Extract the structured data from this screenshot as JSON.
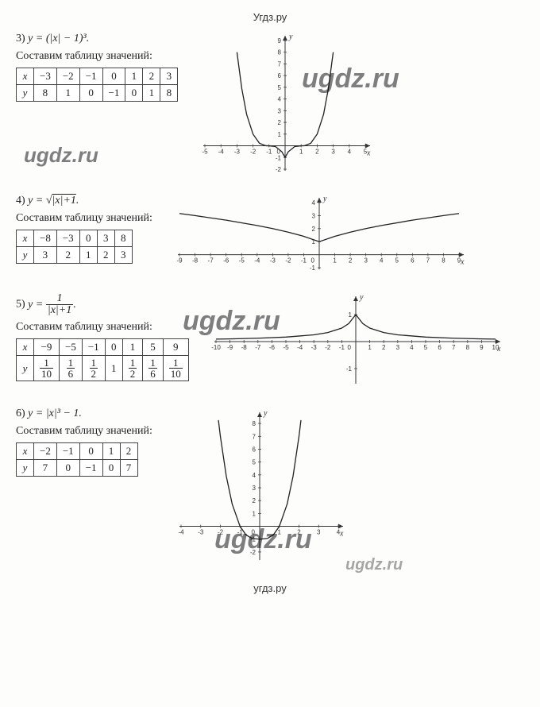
{
  "header": "Угдз.ру",
  "footer": "угдз.ру",
  "watermarks": [
    "ugdz.ru",
    "ugdz.ru",
    "ugdz.ru",
    "ugdz.ru",
    "ugdz.ru"
  ],
  "problems": {
    "p3": {
      "num": "3)",
      "formula": "y = (|x| − 1)³.",
      "caption": "Составим таблицу значений:",
      "table": {
        "headers": [
          "x",
          "−3",
          "−2",
          "−1",
          "0",
          "1",
          "2",
          "3"
        ],
        "row2": [
          "y",
          "8",
          "1",
          "0",
          "−1",
          "0",
          "1",
          "8"
        ]
      },
      "chart": {
        "xlim": [
          -5,
          5
        ],
        "ylim": [
          -2,
          9
        ],
        "xtick": 1,
        "ytick": 1,
        "axis_color": "#333",
        "curve_color": "#222",
        "data": [
          [
            -3,
            8
          ],
          [
            -2.7,
            4.9
          ],
          [
            -2.4,
            2.7
          ],
          [
            -2,
            1
          ],
          [
            -1.6,
            0.22
          ],
          [
            -1.2,
            0.008
          ],
          [
            -1,
            0
          ],
          [
            -0.6,
            -0.064
          ],
          [
            -0.2,
            -0.51
          ],
          [
            0,
            -1
          ],
          [
            0.2,
            -0.51
          ],
          [
            0.6,
            -0.064
          ],
          [
            1,
            0
          ],
          [
            1.2,
            0.008
          ],
          [
            1.6,
            0.22
          ],
          [
            2,
            1
          ],
          [
            2.4,
            2.7
          ],
          [
            2.7,
            4.9
          ],
          [
            3,
            8
          ]
        ]
      }
    },
    "p4": {
      "num": "4)",
      "formula_html": "y = √<span style='text-decoration:overline'>|x|+1</span>.",
      "caption": "Составим таблицу значений:",
      "table": {
        "headers": [
          "x",
          "−8",
          "−3",
          "0",
          "3",
          "8"
        ],
        "row2": [
          "y",
          "3",
          "2",
          "1",
          "2",
          "3"
        ]
      },
      "chart": {
        "xlim": [
          -9,
          9
        ],
        "ylim": [
          -1,
          4
        ],
        "xtick": 1,
        "ytick": 1,
        "axis_color": "#333",
        "curve_color": "#222",
        "data": [
          [
            -9,
            3.16
          ],
          [
            -8,
            3
          ],
          [
            -6,
            2.65
          ],
          [
            -4,
            2.24
          ],
          [
            -3,
            2
          ],
          [
            -2,
            1.73
          ],
          [
            -1,
            1.41
          ],
          [
            0,
            1
          ],
          [
            1,
            1.41
          ],
          [
            2,
            1.73
          ],
          [
            3,
            2
          ],
          [
            4,
            2.24
          ],
          [
            6,
            2.65
          ],
          [
            8,
            3
          ],
          [
            9,
            3.16
          ]
        ]
      }
    },
    "p5": {
      "num": "5)",
      "formula_frac": {
        "pre": "y = ",
        "num": "1",
        "den": "|x|+1",
        "post": "."
      },
      "caption": "Составим таблицу значений:",
      "table": {
        "headers": [
          "x",
          "−9",
          "−5",
          "−1",
          "0",
          "1",
          "5",
          "9"
        ],
        "row2_frac": [
          {
            "plain": "y"
          },
          {
            "num": "1",
            "den": "10"
          },
          {
            "num": "1",
            "den": "6"
          },
          {
            "num": "1",
            "den": "2"
          },
          {
            "plain": "1"
          },
          {
            "num": "1",
            "den": "2"
          },
          {
            "num": "1",
            "den": "6"
          },
          {
            "num": "1",
            "den": "10"
          }
        ]
      },
      "chart": {
        "xlim": [
          -10,
          10
        ],
        "ylim": [
          -1.5,
          1.5
        ],
        "xtick": 1,
        "ytick": 1,
        "axis_color": "#333",
        "curve_color": "#222",
        "data": [
          [
            -10,
            0.091
          ],
          [
            -9,
            0.1
          ],
          [
            -7,
            0.125
          ],
          [
            -5,
            0.167
          ],
          [
            -3,
            0.25
          ],
          [
            -2,
            0.333
          ],
          [
            -1,
            0.5
          ],
          [
            -0.5,
            0.667
          ],
          [
            0,
            1
          ],
          [
            0.5,
            0.667
          ],
          [
            1,
            0.5
          ],
          [
            2,
            0.333
          ],
          [
            3,
            0.25
          ],
          [
            5,
            0.167
          ],
          [
            7,
            0.125
          ],
          [
            9,
            0.1
          ],
          [
            10,
            0.091
          ]
        ]
      }
    },
    "p6": {
      "num": "6)",
      "formula": "y = |x|³ − 1.",
      "caption": "Составим таблицу значений:",
      "table": {
        "headers": [
          "x",
          "−2",
          "−1",
          "0",
          "1",
          "2"
        ],
        "row2": [
          "y",
          "7",
          "0",
          "−1",
          "0",
          "7"
        ]
      },
      "chart": {
        "xlim": [
          -4,
          4
        ],
        "ylim": [
          -2.5,
          8.5
        ],
        "xtick": 1,
        "ytick": 1,
        "axis_color": "#333",
        "curve_color": "#222",
        "data": [
          [
            -2.1,
            8.26
          ],
          [
            -2,
            7
          ],
          [
            -1.7,
            3.91
          ],
          [
            -1.4,
            1.74
          ],
          [
            -1,
            0
          ],
          [
            -0.7,
            -0.66
          ],
          [
            -0.4,
            -0.94
          ],
          [
            0,
            -1
          ],
          [
            0.4,
            -0.94
          ],
          [
            0.7,
            -0.66
          ],
          [
            1,
            0
          ],
          [
            1.4,
            1.74
          ],
          [
            1.7,
            3.91
          ],
          [
            2,
            7
          ],
          [
            2.1,
            8.26
          ]
        ]
      }
    }
  }
}
